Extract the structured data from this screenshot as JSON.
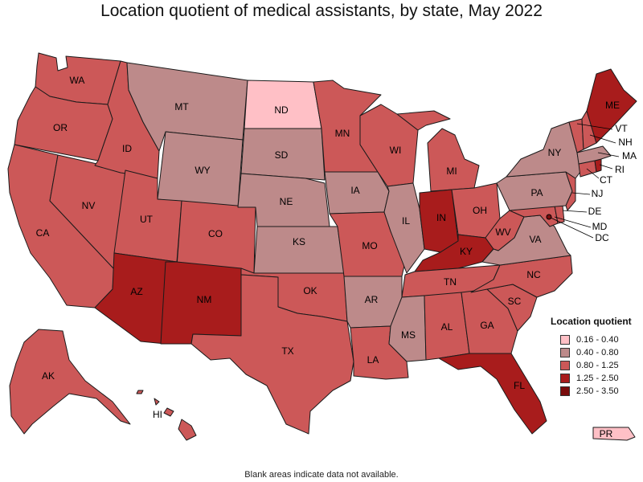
{
  "title": "Location quotient of medical assistants, by state, May 2022",
  "footnote": "Blank areas indicate data not available.",
  "legend": {
    "title": "Location quotient",
    "items": [
      {
        "label": "0.16 - 0.40",
        "color": "#ffc0c6"
      },
      {
        "label": "0.40 - 0.80",
        "color": "#bd8a8a"
      },
      {
        "label": "0.80 - 1.25",
        "color": "#cc5858"
      },
      {
        "label": "1.25 - 2.50",
        "color": "#a81c1c"
      },
      {
        "label": "2.50 - 3.50",
        "color": "#7a0c0c"
      }
    ]
  },
  "states": {
    "WA": {
      "label": "WA",
      "color": "#cc5858"
    },
    "OR": {
      "label": "OR",
      "color": "#cc5858"
    },
    "CA": {
      "label": "CA",
      "color": "#cc5858"
    },
    "NV": {
      "label": "NV",
      "color": "#cc5858"
    },
    "ID": {
      "label": "ID",
      "color": "#cc5858"
    },
    "MT": {
      "label": "MT",
      "color": "#bd8a8a"
    },
    "WY": {
      "label": "WY",
      "color": "#bd8a8a"
    },
    "UT": {
      "label": "UT",
      "color": "#cc5858"
    },
    "AZ": {
      "label": "AZ",
      "color": "#a81c1c"
    },
    "CO": {
      "label": "CO",
      "color": "#cc5858"
    },
    "NM": {
      "label": "NM",
      "color": "#a81c1c"
    },
    "ND": {
      "label": "ND",
      "color": "#ffc0c6"
    },
    "SD": {
      "label": "SD",
      "color": "#bd8a8a"
    },
    "NE": {
      "label": "NE",
      "color": "#bd8a8a"
    },
    "KS": {
      "label": "KS",
      "color": "#bd8a8a"
    },
    "OK": {
      "label": "OK",
      "color": "#cc5858"
    },
    "TX": {
      "label": "TX",
      "color": "#cc5858"
    },
    "MN": {
      "label": "MN",
      "color": "#cc5858"
    },
    "IA": {
      "label": "IA",
      "color": "#bd8a8a"
    },
    "MO": {
      "label": "MO",
      "color": "#cc5858"
    },
    "AR": {
      "label": "AR",
      "color": "#bd8a8a"
    },
    "LA": {
      "label": "LA",
      "color": "#cc5858"
    },
    "WI": {
      "label": "WI",
      "color": "#cc5858"
    },
    "IL": {
      "label": "IL",
      "color": "#bd8a8a"
    },
    "MS": {
      "label": "MS",
      "color": "#bd8a8a"
    },
    "MI": {
      "label": "MI",
      "color": "#cc5858"
    },
    "IN": {
      "label": "IN",
      "color": "#a81c1c"
    },
    "KY": {
      "label": "KY",
      "color": "#a81c1c"
    },
    "TN": {
      "label": "TN",
      "color": "#cc5858"
    },
    "AL": {
      "label": "AL",
      "color": "#cc5858"
    },
    "OH": {
      "label": "OH",
      "color": "#cc5858"
    },
    "WV": {
      "label": "WV",
      "color": "#cc5858"
    },
    "GA": {
      "label": "GA",
      "color": "#cc5858"
    },
    "FL": {
      "label": "FL",
      "color": "#a81c1c"
    },
    "SC": {
      "label": "SC",
      "color": "#cc5858"
    },
    "NC": {
      "label": "NC",
      "color": "#cc5858"
    },
    "VA": {
      "label": "VA",
      "color": "#bd8a8a"
    },
    "PA": {
      "label": "PA",
      "color": "#bd8a8a"
    },
    "NY": {
      "label": "NY",
      "color": "#bd8a8a"
    },
    "ME": {
      "label": "ME",
      "color": "#a81c1c"
    },
    "VT": {
      "label": "VT",
      "color": "#cc5858"
    },
    "NH": {
      "label": "NH",
      "color": "#cc5858"
    },
    "MA": {
      "label": "MA",
      "color": "#bd8a8a"
    },
    "RI": {
      "label": "RI",
      "color": "#a81c1c"
    },
    "CT": {
      "label": "CT",
      "color": "#cc5858"
    },
    "NJ": {
      "label": "NJ",
      "color": "#cc5858"
    },
    "DE": {
      "label": "DE",
      "color": "#cc5858"
    },
    "MD": {
      "label": "MD",
      "color": "#cc5858"
    },
    "DC": {
      "label": "DC",
      "color": "#7a0c0c"
    },
    "AK": {
      "label": "AK",
      "color": "#cc5858"
    },
    "HI": {
      "label": "HI",
      "color": "#cc5858"
    },
    "PR": {
      "label": "PR",
      "color": "#ffc0c6"
    }
  }
}
